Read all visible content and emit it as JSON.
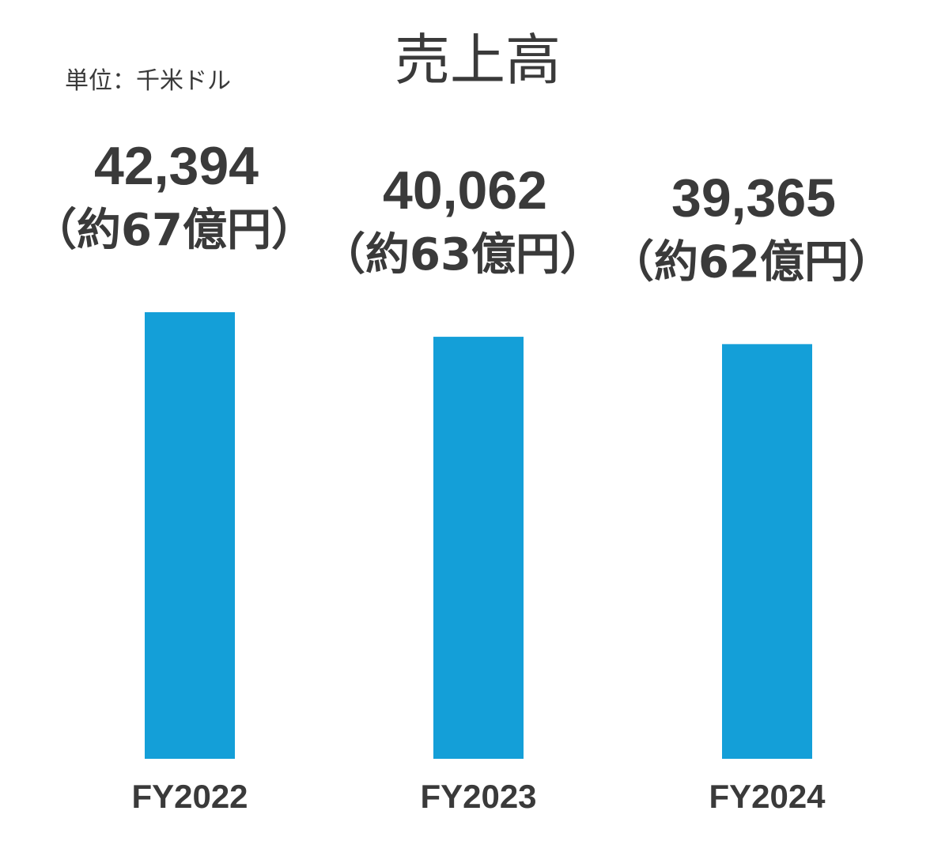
{
  "chart_data": {
    "type": "bar",
    "title": "売上高",
    "unit_label": "単位：千米ドル",
    "categories": [
      "FY2022",
      "FY2023",
      "FY2024"
    ],
    "values": [
      42394,
      40062,
      39365
    ],
    "value_labels": [
      "42,394",
      "40,062",
      "39,365"
    ],
    "approx_labels": [
      "（約67億円）",
      "（約63億円）",
      "（約62億円）"
    ],
    "bar_color": "#149fd8",
    "xlabel": "",
    "ylabel": "",
    "axis_visible": false,
    "grid": false,
    "legend": "none"
  }
}
